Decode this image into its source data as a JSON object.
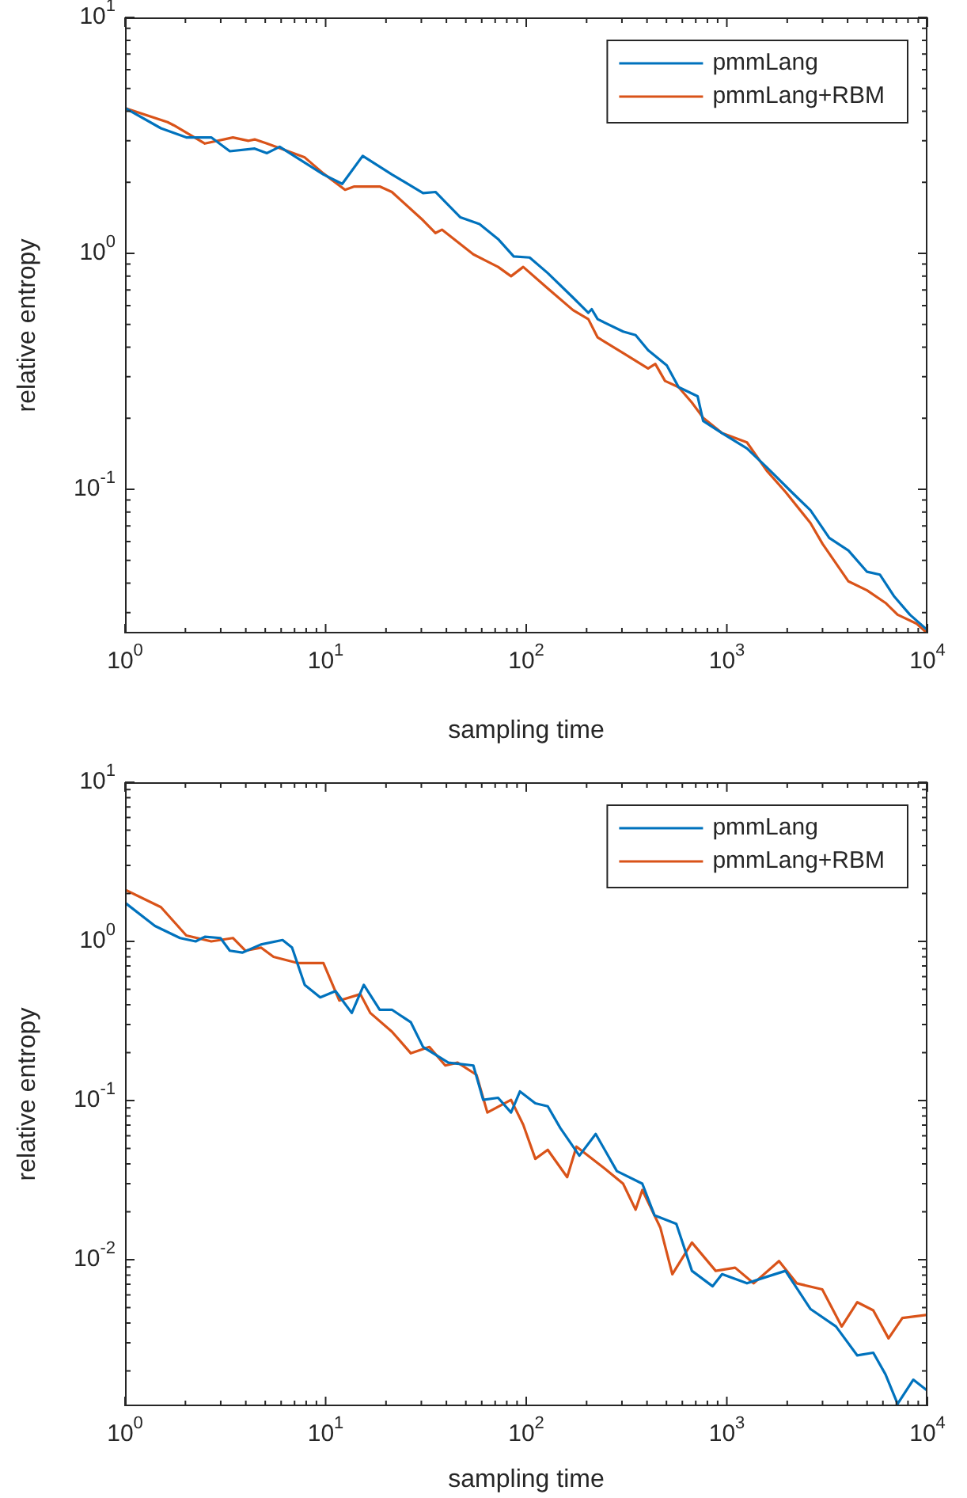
{
  "chart_data": [
    {
      "type": "line",
      "xlabel": "sampling time",
      "ylabel": "relative entropy",
      "log": "xy",
      "legend": "top right",
      "grid": false,
      "marker": "none",
      "line_style": "solid",
      "xlim": [
        1,
        10000
      ],
      "ylim": [
        0.0245,
        10
      ],
      "xticks": [
        {
          "value": 1,
          "label": "10$^{0}$"
        },
        {
          "value": 10,
          "label": "10$^{1}$"
        },
        {
          "value": 100,
          "label": "10$^{2}$"
        },
        {
          "value": 1000,
          "label": "10$^{3}$"
        },
        {
          "value": 10000,
          "label": "10$^{4}$"
        }
      ],
      "yticks": [
        {
          "value": 0.1,
          "label": "10$^{-1}$"
        },
        {
          "value": 1,
          "label": "10$^{0}$"
        },
        {
          "value": 10,
          "label": "10$^{1}$"
        }
      ],
      "series": [
        {
          "name": "pmmLang",
          "color": "#0072bd",
          "x": [
            1,
            1.51,
            2.02,
            2.69,
            3.33,
            4.43,
            5.1,
            5.9,
            9.75,
            12.1,
            15.3,
            21.4,
            30.6,
            35.3,
            47,
            58.5,
            72.4,
            86.6,
            104,
            128,
            171,
            204,
            212,
            227,
            304,
            351,
            405,
            502,
            575,
            715,
            762,
            947,
            1260,
            1580,
            2100,
            2610,
            3240,
            4040,
            5000,
            5790,
            6800,
            8180,
            10000
          ],
          "values": [
            4.13,
            3.39,
            3.1,
            3.1,
            2.71,
            2.78,
            2.66,
            2.83,
            2.16,
            1.97,
            2.59,
            2.16,
            1.8,
            1.82,
            1.42,
            1.33,
            1.15,
            0.97,
            0.96,
            0.825,
            0.65,
            0.56,
            0.58,
            0.526,
            0.466,
            0.45,
            0.389,
            0.335,
            0.271,
            0.248,
            0.195,
            0.173,
            0.149,
            0.124,
            0.0975,
            0.0815,
            0.0622,
            0.055,
            0.0447,
            0.0435,
            0.0353,
            0.0294,
            0.0253
          ]
        },
        {
          "name": "pmmLang+RBM",
          "color": "#d95319",
          "x": [
            1,
            1.63,
            1.75,
            2.5,
            3.45,
            4.13,
            4.43,
            5.1,
            7.87,
            9.75,
            12.5,
            13.9,
            18.6,
            21.4,
            30.6,
            35.3,
            38,
            54.5,
            63,
            72.4,
            84,
            96.6,
            128,
            171,
            204,
            227,
            304,
            405,
            440,
            492,
            575,
            670,
            762,
            947,
            1260,
            1580,
            1960,
            2610,
            3000,
            4040,
            5000,
            6180,
            7100,
            8800,
            10000
          ],
          "values": [
            4.13,
            3.6,
            3.49,
            2.92,
            3.1,
            3.0,
            3.04,
            2.92,
            2.55,
            2.18,
            1.86,
            1.92,
            1.92,
            1.82,
            1.38,
            1.22,
            1.26,
            0.99,
            0.93,
            0.876,
            0.8,
            0.876,
            0.71,
            0.575,
            0.526,
            0.44,
            0.378,
            0.325,
            0.34,
            0.288,
            0.271,
            0.233,
            0.201,
            0.173,
            0.158,
            0.12,
            0.0975,
            0.072,
            0.0587,
            0.0407,
            0.0373,
            0.033,
            0.0294,
            0.027,
            0.0245
          ]
        }
      ]
    },
    {
      "type": "line",
      "xlabel": "sampling time",
      "ylabel": "relative entropy",
      "log": "xy",
      "legend": "top right",
      "grid": false,
      "marker": "none",
      "line_style": "solid",
      "xlim": [
        1,
        10000
      ],
      "ylim": [
        0.0012,
        10
      ],
      "xticks": [
        {
          "value": 1,
          "label": "10$^{0}$"
        },
        {
          "value": 10,
          "label": "10$^{1}$"
        },
        {
          "value": 100,
          "label": "10$^{2}$"
        },
        {
          "value": 1000,
          "label": "10$^{3}$"
        },
        {
          "value": 10000,
          "label": "10$^{4}$"
        }
      ],
      "yticks": [
        {
          "value": 0.01,
          "label": "10$^{-2}$"
        },
        {
          "value": 0.1,
          "label": "10$^{-1}$"
        },
        {
          "value": 1,
          "label": "10$^{0}$"
        },
        {
          "value": 10,
          "label": "10$^{1}$"
        }
      ],
      "series": [
        {
          "name": "pmmLang",
          "color": "#0072bd",
          "x": [
            1,
            1.41,
            1.88,
            2.25,
            2.5,
            2.99,
            3.33,
            3.84,
            4.76,
            6.1,
            6.8,
            7.87,
            9.4,
            11.2,
            13.5,
            15.5,
            18.6,
            21.4,
            26.6,
            30.6,
            40.9,
            54.5,
            61,
            72.4,
            84,
            93,
            111,
            128,
            148,
            184,
            222,
            283,
            379,
            436,
            560,
            670,
            850,
            947,
            1260,
            1580,
            1960,
            2610,
            3500,
            4470,
            5370,
            6180,
            7100,
            8500,
            10000
          ],
          "values": [
            1.75,
            1.25,
            1.05,
            1.0,
            1.07,
            1.05,
            0.874,
            0.85,
            0.956,
            1.02,
            0.914,
            0.533,
            0.445,
            0.487,
            0.355,
            0.533,
            0.372,
            0.372,
            0.31,
            0.217,
            0.173,
            0.166,
            0.101,
            0.104,
            0.084,
            0.114,
            0.096,
            0.092,
            0.067,
            0.045,
            0.0616,
            0.036,
            0.03,
            0.019,
            0.0168,
            0.0085,
            0.0068,
            0.0081,
            0.0071,
            0.0078,
            0.0085,
            0.0049,
            0.0038,
            0.0025,
            0.0026,
            0.0019,
            0.00124,
            0.00176,
            0.0015
          ]
        },
        {
          "name": "pmmLang+RBM",
          "color": "#d95319",
          "x": [
            1,
            1.51,
            2.02,
            2.69,
            3.45,
            3.98,
            4.76,
            5.5,
            7.3,
            9.75,
            11.7,
            14.9,
            16.7,
            21.4,
            26.6,
            32.9,
            39.5,
            45.5,
            56.5,
            64,
            84,
            96.6,
            111,
            128,
            160,
            178,
            245,
            304,
            351,
            379,
            466,
            535,
            670,
            880,
            1100,
            1360,
            1820,
            2230,
            2990,
            3740,
            4470,
            5370,
            6400,
            7500,
            10000
          ],
          "values": [
            2.11,
            1.64,
            1.09,
            1.0,
            1.05,
            0.874,
            0.914,
            0.799,
            0.73,
            0.73,
            0.425,
            0.466,
            0.355,
            0.271,
            0.198,
            0.217,
            0.166,
            0.173,
            0.145,
            0.084,
            0.101,
            0.0705,
            0.043,
            0.049,
            0.033,
            0.0513,
            0.0375,
            0.03,
            0.0206,
            0.0274,
            0.0159,
            0.0081,
            0.0128,
            0.0085,
            0.0089,
            0.0071,
            0.0098,
            0.0071,
            0.0065,
            0.0038,
            0.0054,
            0.0048,
            0.0032,
            0.0043,
            0.0045
          ]
        }
      ]
    }
  ]
}
